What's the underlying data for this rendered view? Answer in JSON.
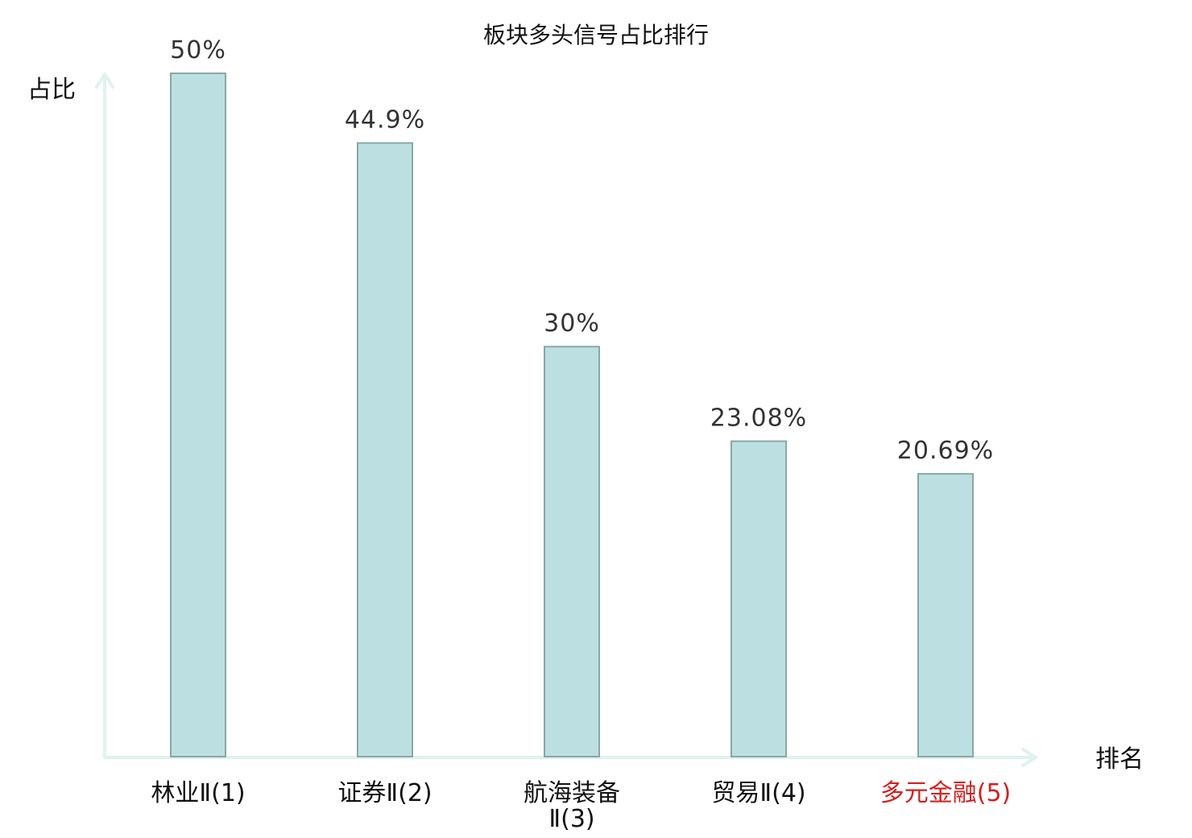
{
  "chart_data": {
    "type": "bar",
    "title": "板块多头信号占比排行",
    "xlabel": "排名",
    "ylabel": "占比",
    "categories": [
      [
        "林业Ⅱ(1)"
      ],
      [
        "证券Ⅱ(2)"
      ],
      [
        "航海装备",
        "Ⅱ(3)"
      ],
      [
        "贸易Ⅱ(4)"
      ],
      [
        "多元金融(5)"
      ]
    ],
    "values": [
      50,
      44.9,
      30,
      23.08,
      20.69
    ],
    "value_labels": [
      "50%",
      "44.9%",
      "30%",
      "23.08%",
      "20.69%"
    ],
    "highlight_index": 4,
    "ylim": [
      0,
      50
    ],
    "grid": false,
    "legend": "none"
  },
  "colors": {
    "bar_fill": "#bce0e1",
    "bar_stroke": "#8aa6a7",
    "axis": "#dff2ef",
    "highlight_label": "#d42020",
    "text": "#111111",
    "value_text": "#333333"
  }
}
